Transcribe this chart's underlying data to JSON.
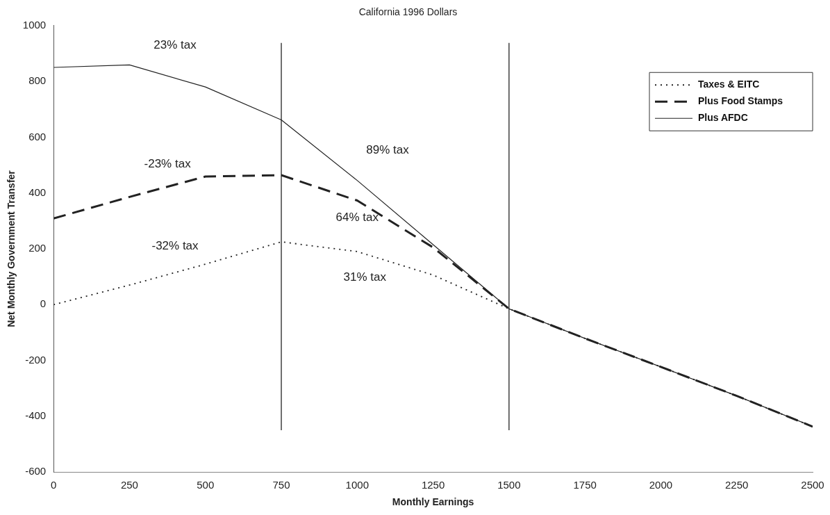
{
  "chart_data": {
    "type": "line",
    "title": "California 1996 Dollars",
    "xlabel": "Monthly Earnings",
    "ylabel": "Net Monthly Government Transfer",
    "x": [
      0,
      250,
      500,
      750,
      1000,
      1250,
      1500,
      1750,
      2000,
      2250,
      2500
    ],
    "series": [
      {
        "name": "Taxes & EITC",
        "color": "#222222",
        "line_style": "dotted",
        "values": [
          0,
          70,
          145,
          225,
          190,
          106,
          -15,
          -121,
          -223,
          -327,
          -437
        ]
      },
      {
        "name": "Plus Food Stamps",
        "color": "#222222",
        "line_style": "dashed",
        "values": [
          309,
          386,
          459,
          464,
          373,
          205,
          -15,
          -121,
          -223,
          -327,
          -437
        ]
      },
      {
        "name": "Plus AFDC",
        "color": "#222222",
        "line_style": "solid",
        "values": [
          850,
          859,
          780,
          662,
          445,
          215,
          -15,
          -121,
          -223,
          -327,
          -437
        ]
      }
    ],
    "xlim": [
      0,
      2500
    ],
    "xticks": [
      0,
      250,
      500,
      750,
      1000,
      1250,
      1500,
      1750,
      2000,
      2250,
      2500
    ],
    "ylim": [
      -600,
      1000
    ],
    "yticks": [
      -600,
      -400,
      -200,
      0,
      200,
      400,
      600,
      800,
      1000
    ],
    "ref_lines": [
      {
        "axis": "x",
        "value": 750
      },
      {
        "axis": "x",
        "value": 1500
      }
    ],
    "annotations": [
      "23% tax",
      "-23% tax",
      "-32% tax",
      "89% tax",
      "64% tax",
      "31% tax"
    ],
    "grid": false,
    "legend": "top right",
    "marker": "none"
  }
}
